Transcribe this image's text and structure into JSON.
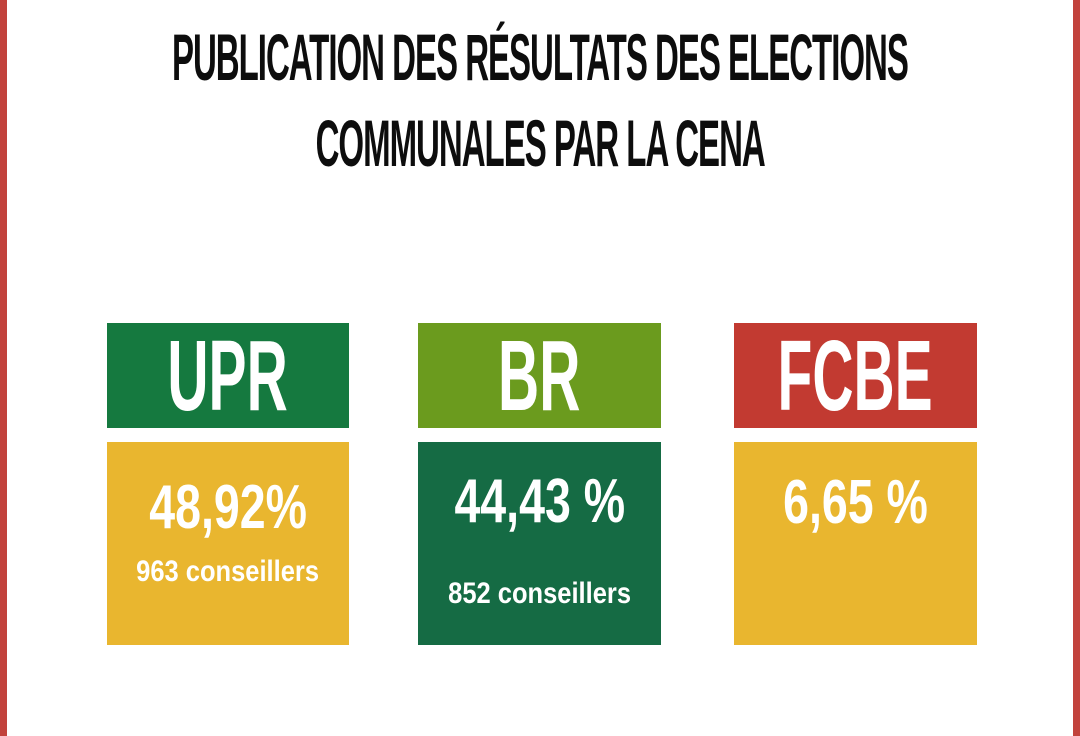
{
  "page": {
    "background": "#ffffff",
    "edge_bar_color": "#c2423c"
  },
  "title": {
    "line1": "PUBLICATION DES RÉSULTATS DES ELECTIONS",
    "line2": "COMMUNALES PAR LA CENA",
    "color": "#0d0d0d"
  },
  "parties": [
    {
      "name": "UPR",
      "percent": "48,92%",
      "seats": "963 conseillers",
      "header_color": "#15793f",
      "body_color": "#e9b62f",
      "text_color": "#ffffff"
    },
    {
      "name": "BR",
      "percent": "44,43 %",
      "seats": "852 conseillers",
      "header_color": "#6b9b1e",
      "body_color": "#156b44",
      "text_color": "#ffffff"
    },
    {
      "name": "FCBE",
      "percent": "6,65 %",
      "seats": "",
      "header_color": "#c23a31",
      "body_color": "#e9b62f",
      "text_color": "#ffffff"
    }
  ],
  "chart_data": {
    "type": "table",
    "title": "PUBLICATION DES RÉSULTATS DES ELECTIONS COMMUNALES PAR LA CENA",
    "categories": [
      "UPR",
      "BR",
      "FCBE"
    ],
    "series": [
      {
        "name": "percent_of_votes",
        "values": [
          48.92,
          44.43,
          6.65
        ]
      },
      {
        "name": "conseillers",
        "values": [
          963,
          852,
          null
        ]
      }
    ],
    "legend_position": "none",
    "grid": false
  }
}
